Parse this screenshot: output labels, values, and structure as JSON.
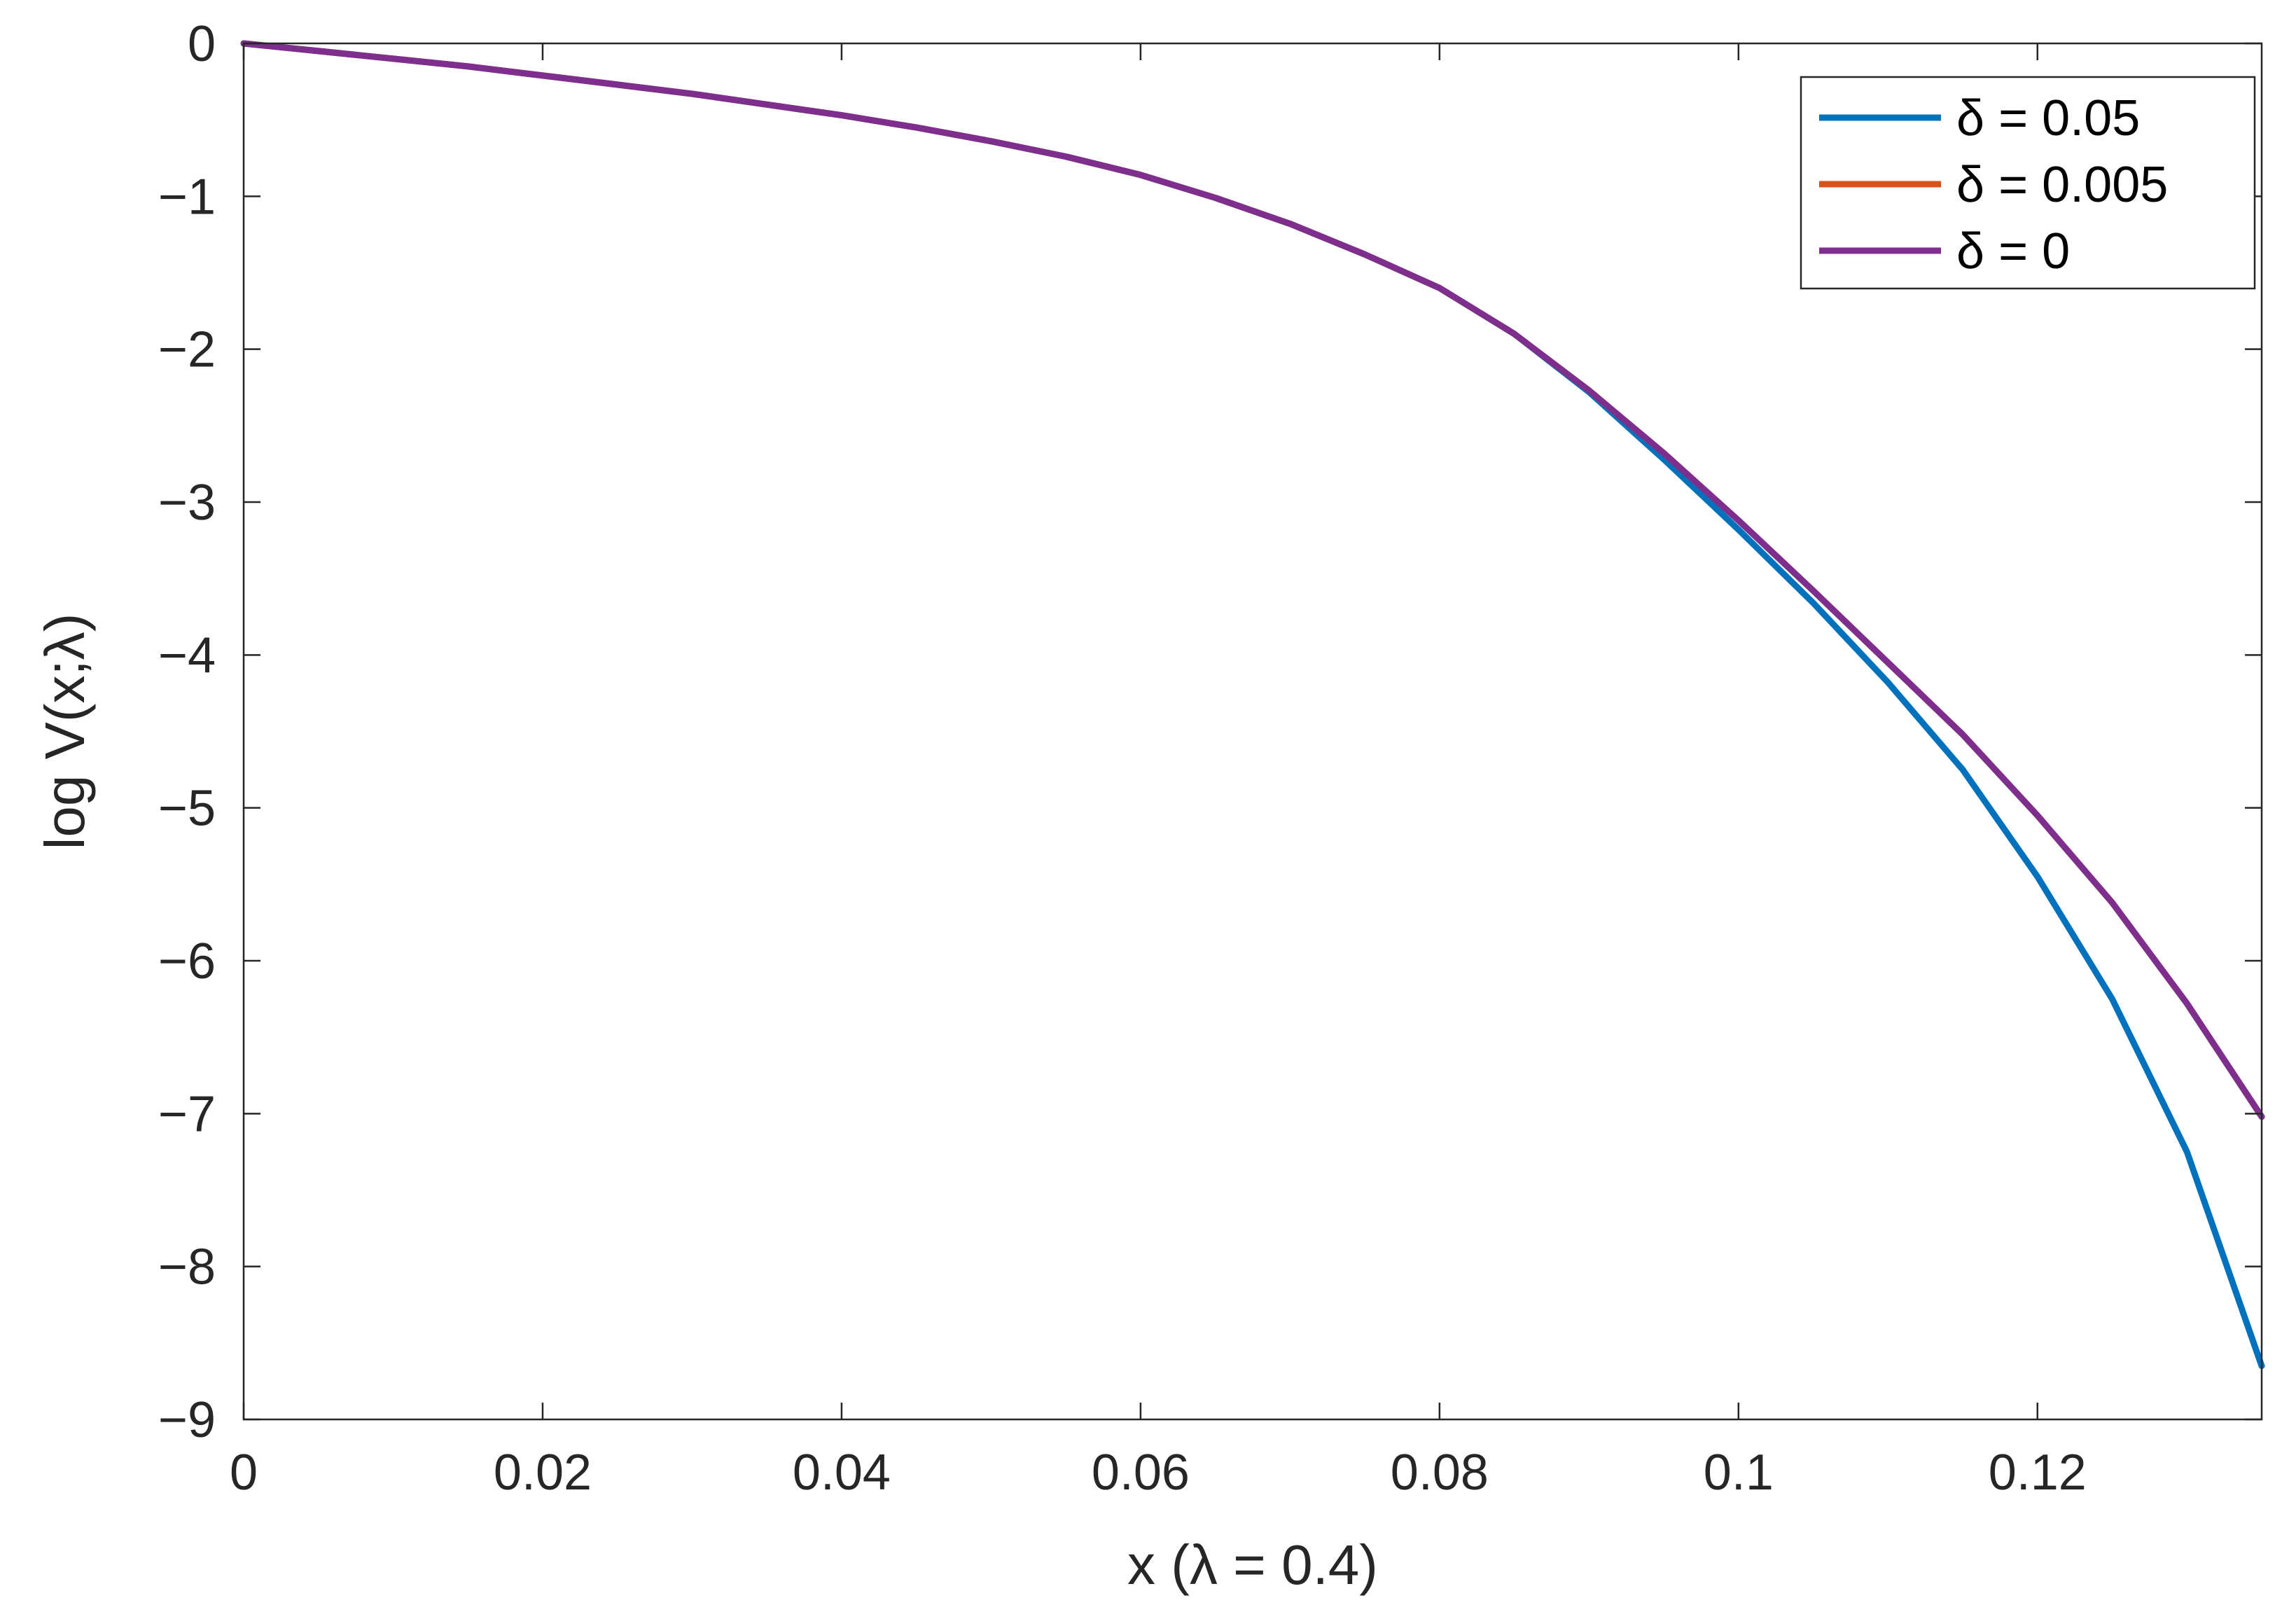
{
  "chart_data": {
    "type": "line",
    "title": "",
    "xlabel": "x (λ = 0.4)",
    "ylabel": "log V(x;λ)",
    "xlim": [
      0,
      0.135
    ],
    "ylim": [
      -9,
      0
    ],
    "xticks": [
      0,
      0.02,
      0.04,
      0.06,
      0.08,
      0.1,
      0.12
    ],
    "xtick_labels": [
      "0",
      "0.02",
      "0.04",
      "0.06",
      "0.08",
      "0.1",
      "0.12"
    ],
    "yticks": [
      0,
      -1,
      -2,
      -3,
      -4,
      -5,
      -6,
      -7,
      -8,
      -9
    ],
    "ytick_labels": [
      "0",
      "−1",
      "−2",
      "−3",
      "−4",
      "−5",
      "−6",
      "−7",
      "−8",
      "−9"
    ],
    "grid": false,
    "legend_position": "top-right",
    "x": [
      0,
      0.005,
      0.01,
      0.015,
      0.02,
      0.025,
      0.03,
      0.035,
      0.04,
      0.045,
      0.05,
      0.055,
      0.06,
      0.065,
      0.07,
      0.075,
      0.08,
      0.085,
      0.09,
      0.095,
      0.1,
      0.105,
      0.11,
      0.115,
      0.12,
      0.125,
      0.13,
      0.135
    ],
    "series": [
      {
        "name": "δ = 0.05",
        "color": "#0072BD",
        "values": [
          0,
          -0.05,
          -0.1,
          -0.15,
          -0.21,
          -0.27,
          -0.33,
          -0.4,
          -0.47,
          -0.55,
          -0.64,
          -0.74,
          -0.86,
          -1.01,
          -1.18,
          -1.38,
          -1.6,
          -1.9,
          -2.28,
          -2.72,
          -3.18,
          -3.66,
          -4.18,
          -4.75,
          -5.45,
          -6.25,
          -7.25,
          -8.65
        ]
      },
      {
        "name": "δ = 0.005",
        "color": "#D95319",
        "values": [
          0,
          -0.05,
          -0.1,
          -0.15,
          -0.21,
          -0.27,
          -0.33,
          -0.4,
          -0.47,
          -0.55,
          -0.64,
          -0.74,
          -0.86,
          -1.01,
          -1.18,
          -1.38,
          -1.6,
          -1.9,
          -2.27,
          -2.68,
          -3.12,
          -3.58,
          -4.05,
          -4.52,
          -5.05,
          -5.62,
          -6.28,
          -7.02
        ]
      },
      {
        "name": "δ = 0",
        "color": "#7E2F8E",
        "values": [
          0,
          -0.05,
          -0.1,
          -0.15,
          -0.21,
          -0.27,
          -0.33,
          -0.4,
          -0.47,
          -0.55,
          -0.64,
          -0.74,
          -0.86,
          -1.01,
          -1.18,
          -1.38,
          -1.6,
          -1.9,
          -2.27,
          -2.68,
          -3.12,
          -3.58,
          -4.05,
          -4.52,
          -5.05,
          -5.62,
          -6.28,
          -7.02
        ]
      }
    ]
  }
}
